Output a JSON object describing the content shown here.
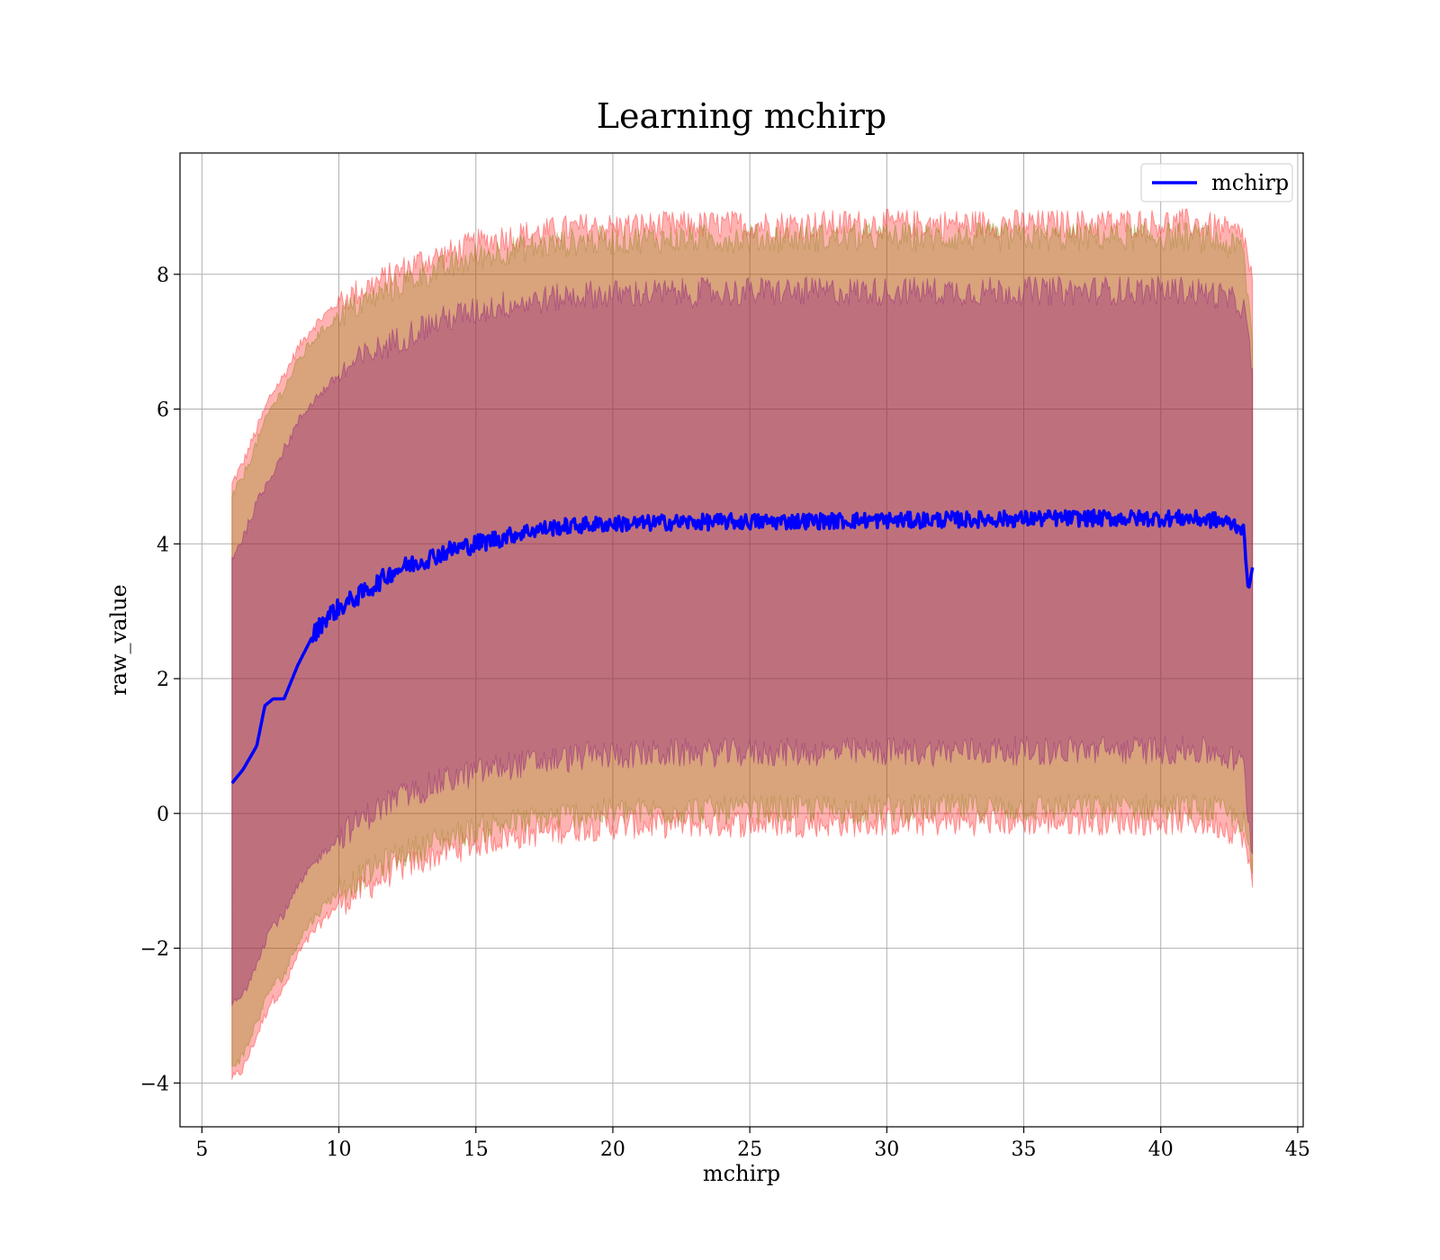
{
  "chart_data": {
    "type": "line",
    "title": "Learning mchirp",
    "xlabel": "mchirp",
    "ylabel": "raw_value",
    "xlim": [
      4.2,
      45.2
    ],
    "ylim": [
      -4.65,
      9.8
    ],
    "xticks": [
      5,
      10,
      15,
      20,
      25,
      30,
      35,
      40,
      45
    ],
    "yticks": [
      -4,
      -2,
      0,
      2,
      4,
      6,
      8
    ],
    "xtick_labels": [
      "5",
      "10",
      "15",
      "20",
      "25",
      "30",
      "35",
      "40",
      "45"
    ],
    "ytick_labels": [
      "−4",
      "−2",
      "0",
      "2",
      "4",
      "6",
      "8"
    ],
    "grid": true,
    "legend": {
      "position": "upper-right",
      "entries": [
        "mchirp"
      ]
    },
    "series": [
      {
        "name": "mchirp",
        "color": "#0000ff",
        "x": [
          6.1,
          6.5,
          7.0,
          7.3,
          7.6,
          8.0,
          8.5,
          9.0,
          9.5,
          10.0,
          11.0,
          12.0,
          13.0,
          14.0,
          15.0,
          16.0,
          17.0,
          18.0,
          19.0,
          20.0,
          21.0,
          22.0,
          23.0,
          24.0,
          25.0,
          26.0,
          27.0,
          28.0,
          29.0,
          30.0,
          31.0,
          32.0,
          33.0,
          34.0,
          35.0,
          36.0,
          37.0,
          38.0,
          39.0,
          40.0,
          41.0,
          42.0,
          42.6,
          43.0,
          43.2,
          43.35
        ],
        "y": [
          0.45,
          0.65,
          1.0,
          1.6,
          1.7,
          1.7,
          2.2,
          2.6,
          2.9,
          3.05,
          3.3,
          3.6,
          3.75,
          3.9,
          4.0,
          4.1,
          4.2,
          4.25,
          4.28,
          4.3,
          4.3,
          4.32,
          4.32,
          4.33,
          4.33,
          4.33,
          4.34,
          4.34,
          4.35,
          4.35,
          4.35,
          4.36,
          4.36,
          4.37,
          4.37,
          4.38,
          4.38,
          4.38,
          4.38,
          4.38,
          4.38,
          4.35,
          4.3,
          4.25,
          3.3,
          3.65
        ]
      }
    ],
    "bands": [
      {
        "color": "#ff0000",
        "opacity": 0.3,
        "x": [
          6.1,
          6.5,
          7.0,
          7.5,
          8.0,
          8.5,
          9.0,
          9.5,
          10.0,
          11.0,
          12.0,
          13.0,
          14.0,
          15.0,
          16.0,
          17.0,
          18.0,
          19.0,
          20.0,
          21.0,
          22.0,
          23.0,
          24.0,
          25.0,
          26.0,
          27.0,
          28.0,
          29.0,
          30.0,
          31.0,
          32.0,
          33.0,
          34.0,
          35.0,
          36.0,
          37.0,
          38.0,
          39.0,
          40.0,
          41.0,
          42.0,
          42.6,
          43.0,
          43.35
        ],
        "upper": [
          4.9,
          5.2,
          5.7,
          6.2,
          6.5,
          6.9,
          7.2,
          7.4,
          7.6,
          7.8,
          8.0,
          8.2,
          8.3,
          8.45,
          8.55,
          8.6,
          8.65,
          8.7,
          8.7,
          8.72,
          8.72,
          8.73,
          8.73,
          8.74,
          8.74,
          8.74,
          8.74,
          8.75,
          8.75,
          8.75,
          8.75,
          8.75,
          8.75,
          8.75,
          8.75,
          8.75,
          8.76,
          8.76,
          8.76,
          8.76,
          8.7,
          8.6,
          8.6,
          7.9
        ],
        "lower": [
          -3.95,
          -3.8,
          -3.3,
          -2.8,
          -2.6,
          -2.1,
          -1.8,
          -1.55,
          -1.35,
          -1.1,
          -0.85,
          -0.7,
          -0.55,
          -0.45,
          -0.35,
          -0.3,
          -0.25,
          -0.2,
          -0.18,
          -0.17,
          -0.16,
          -0.15,
          -0.15,
          -0.15,
          -0.14,
          -0.14,
          -0.14,
          -0.14,
          -0.13,
          -0.13,
          -0.13,
          -0.12,
          -0.12,
          -0.12,
          -0.12,
          -0.11,
          -0.11,
          -0.11,
          -0.11,
          -0.11,
          -0.15,
          -0.25,
          -0.3,
          -1.1
        ]
      },
      {
        "color": "#808000",
        "opacity": 0.3,
        "x": [
          6.1,
          6.5,
          7.0,
          7.5,
          8.0,
          8.5,
          9.0,
          9.5,
          10.0,
          11.0,
          12.0,
          13.0,
          14.0,
          15.0,
          16.0,
          17.0,
          18.0,
          19.0,
          20.0,
          21.0,
          22.0,
          23.0,
          24.0,
          25.0,
          26.0,
          27.0,
          28.0,
          29.0,
          30.0,
          31.0,
          32.0,
          33.0,
          34.0,
          35.0,
          36.0,
          37.0,
          38.0,
          39.0,
          40.0,
          41.0,
          42.0,
          42.6,
          43.0,
          43.35
        ],
        "upper": [
          4.7,
          5.0,
          5.5,
          6.0,
          6.3,
          6.7,
          7.0,
          7.2,
          7.4,
          7.6,
          7.8,
          8.0,
          8.1,
          8.25,
          8.35,
          8.4,
          8.45,
          8.5,
          8.5,
          8.52,
          8.52,
          8.53,
          8.53,
          8.54,
          8.54,
          8.54,
          8.54,
          8.55,
          8.55,
          8.55,
          8.55,
          8.55,
          8.55,
          8.55,
          8.55,
          8.55,
          8.56,
          8.56,
          8.56,
          8.56,
          8.5,
          8.4,
          8.4,
          7.0
        ],
        "lower": [
          -3.75,
          -3.6,
          -3.1,
          -2.6,
          -2.4,
          -1.9,
          -1.6,
          -1.35,
          -1.15,
          -0.9,
          -0.65,
          -0.5,
          -0.35,
          -0.25,
          -0.15,
          -0.1,
          -0.05,
          0.0,
          0.02,
          0.03,
          0.04,
          0.05,
          0.05,
          0.05,
          0.06,
          0.06,
          0.06,
          0.06,
          0.07,
          0.07,
          0.07,
          0.08,
          0.08,
          0.08,
          0.08,
          0.09,
          0.09,
          0.09,
          0.09,
          0.09,
          0.05,
          -0.05,
          -0.1,
          -0.9
        ]
      },
      {
        "color": "#800080",
        "opacity": 0.3,
        "x": [
          6.1,
          6.5,
          7.0,
          7.5,
          8.0,
          8.5,
          9.0,
          9.5,
          10.0,
          11.0,
          12.0,
          13.0,
          14.0,
          15.0,
          16.0,
          17.0,
          18.0,
          19.0,
          20.0,
          21.0,
          22.0,
          23.0,
          24.0,
          25.0,
          26.0,
          27.0,
          28.0,
          29.0,
          30.0,
          31.0,
          32.0,
          33.0,
          34.0,
          35.0,
          36.0,
          37.0,
          38.0,
          39.0,
          40.0,
          41.0,
          42.0,
          42.6,
          43.0,
          43.35
        ],
        "upper": [
          3.8,
          4.1,
          4.6,
          5.0,
          5.4,
          5.8,
          6.1,
          6.3,
          6.5,
          6.8,
          7.0,
          7.2,
          7.35,
          7.45,
          7.55,
          7.6,
          7.65,
          7.7,
          7.7,
          7.72,
          7.72,
          7.73,
          7.73,
          7.74,
          7.74,
          7.74,
          7.74,
          7.75,
          7.75,
          7.75,
          7.75,
          7.75,
          7.75,
          7.75,
          7.75,
          7.75,
          7.76,
          7.76,
          7.76,
          7.76,
          7.7,
          7.6,
          7.55,
          6.6
        ],
        "lower": [
          -2.85,
          -2.7,
          -2.2,
          -1.7,
          -1.5,
          -1.1,
          -0.8,
          -0.55,
          -0.35,
          -0.05,
          0.2,
          0.35,
          0.5,
          0.6,
          0.7,
          0.75,
          0.8,
          0.85,
          0.87,
          0.88,
          0.89,
          0.9,
          0.9,
          0.9,
          0.91,
          0.91,
          0.91,
          0.91,
          0.92,
          0.92,
          0.92,
          0.93,
          0.93,
          0.93,
          0.93,
          0.94,
          0.94,
          0.94,
          0.94,
          0.94,
          0.9,
          0.8,
          0.75,
          -0.6
        ]
      }
    ]
  }
}
